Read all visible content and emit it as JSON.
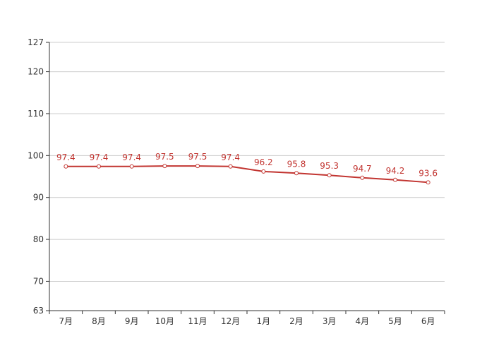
{
  "chart_data": {
    "type": "line",
    "categories": [
      "7月",
      "8月",
      "9月",
      "10月",
      "11月",
      "12月",
      "1月",
      "2月",
      "3月",
      "4月",
      "5月",
      "6月"
    ],
    "series": [
      {
        "values": [
          97.4,
          97.4,
          97.4,
          97.5,
          97.5,
          97.4,
          96.2,
          95.8,
          95.3,
          94.7,
          94.2,
          93.6
        ]
      }
    ],
    "ylim": [
      63,
      127
    ],
    "yticks": [
      63,
      70,
      80,
      90,
      100,
      110,
      120,
      127
    ],
    "grid": true,
    "colors": {
      "line": "#c23531",
      "grid": "#cccccc",
      "axis": "#333333",
      "point_fill": "#ffffff"
    }
  }
}
